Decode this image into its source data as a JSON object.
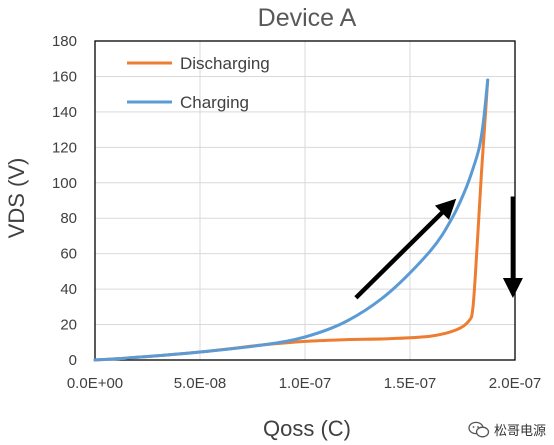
{
  "chart_data": {
    "type": "line",
    "title": "Device A",
    "xlabel": "Qoss (C)",
    "ylabel": "VDS (V)",
    "xlim": [
      0,
      2e-07
    ],
    "ylim": [
      0,
      180
    ],
    "x_ticks": [
      0,
      5e-08,
      1e-07,
      1.5e-07,
      2e-07
    ],
    "x_tick_labels": [
      "0.0E+00",
      "5.0E-08",
      "1.0E-07",
      "1.5E-07",
      "2.0E-07"
    ],
    "y_ticks": [
      0,
      20,
      40,
      60,
      80,
      100,
      120,
      140,
      160,
      180
    ],
    "y_tick_labels": [
      "0",
      "20",
      "40",
      "60",
      "80",
      "100",
      "120",
      "140",
      "160",
      "180"
    ],
    "grid": true,
    "legend_position": "top-left",
    "series": [
      {
        "name": "Discharging",
        "color": "#ED7D31",
        "points": [
          [
            0,
            0
          ],
          [
            2e-08,
            1.5
          ],
          [
            5e-08,
            4.5
          ],
          [
            8e-08,
            8.5
          ],
          [
            1e-07,
            10.5
          ],
          [
            1.2e-07,
            11.5
          ],
          [
            1.4e-07,
            12
          ],
          [
            1.6e-07,
            13.5
          ],
          [
            1.72e-07,
            17
          ],
          [
            1.78e-07,
            22
          ],
          [
            1.8e-07,
            30
          ],
          [
            1.82e-07,
            65
          ],
          [
            1.84e-07,
            105
          ],
          [
            1.86e-07,
            140
          ],
          [
            1.87e-07,
            158
          ]
        ]
      },
      {
        "name": "Charging",
        "color": "#5B9BD5",
        "points": [
          [
            0,
            0
          ],
          [
            2e-08,
            1.5
          ],
          [
            5e-08,
            4.5
          ],
          [
            8e-08,
            8.5
          ],
          [
            1e-07,
            13
          ],
          [
            1.2e-07,
            22
          ],
          [
            1.4e-07,
            38
          ],
          [
            1.6e-07,
            62
          ],
          [
            1.7e-07,
            80
          ],
          [
            1.76e-07,
            95
          ],
          [
            1.8e-07,
            108
          ],
          [
            1.83e-07,
            120
          ],
          [
            1.85e-07,
            135
          ],
          [
            1.87e-07,
            158
          ]
        ]
      }
    ],
    "annotations": [
      {
        "type": "arrow",
        "from": [
          1.25e-07,
          36
        ],
        "to": [
          1.72e-07,
          91
        ]
      },
      {
        "type": "arrow",
        "from": [
          1.99e-07,
          91
        ],
        "to": [
          1.99e-07,
          35
        ]
      }
    ]
  },
  "watermark": {
    "text": "松哥电源"
  }
}
